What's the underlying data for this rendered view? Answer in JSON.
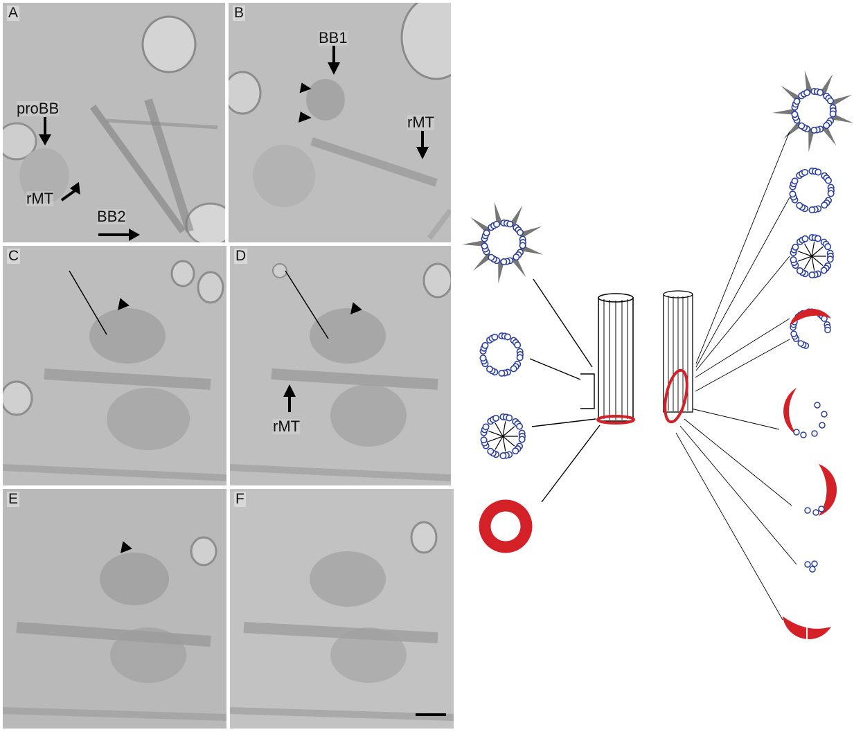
{
  "panels": {
    "A": {
      "label": "A",
      "annotations": {
        "proBB": "proBB",
        "rMT": "rMT",
        "BB2": "BB2"
      }
    },
    "B": {
      "label": "B",
      "annotations": {
        "BB1": "BB1",
        "rMT": "rMT"
      }
    },
    "C": {
      "label": "C"
    },
    "D": {
      "label": "D",
      "annotations": {
        "rMT": "rMT"
      }
    },
    "E": {
      "label": "E"
    },
    "F": {
      "label": "F"
    }
  },
  "colors": {
    "tubule_blue": "#2b3f9e",
    "ring_red": "#d42027",
    "micrograph_gray": "#bdbdbd"
  },
  "diagram": {
    "left_cross_sections": [
      "starred-triplet-ring",
      "triplet-ring",
      "cartwheel-ring",
      "red-ring"
    ],
    "right_cross_sections": [
      "starred-triplet-ring",
      "triplet-ring",
      "cartwheel-ring",
      "partial-ring-with-red-arc",
      "red-crescent-with-few-tubules",
      "red-crescent-right",
      "few-tubules",
      "red-split-arc"
    ]
  }
}
